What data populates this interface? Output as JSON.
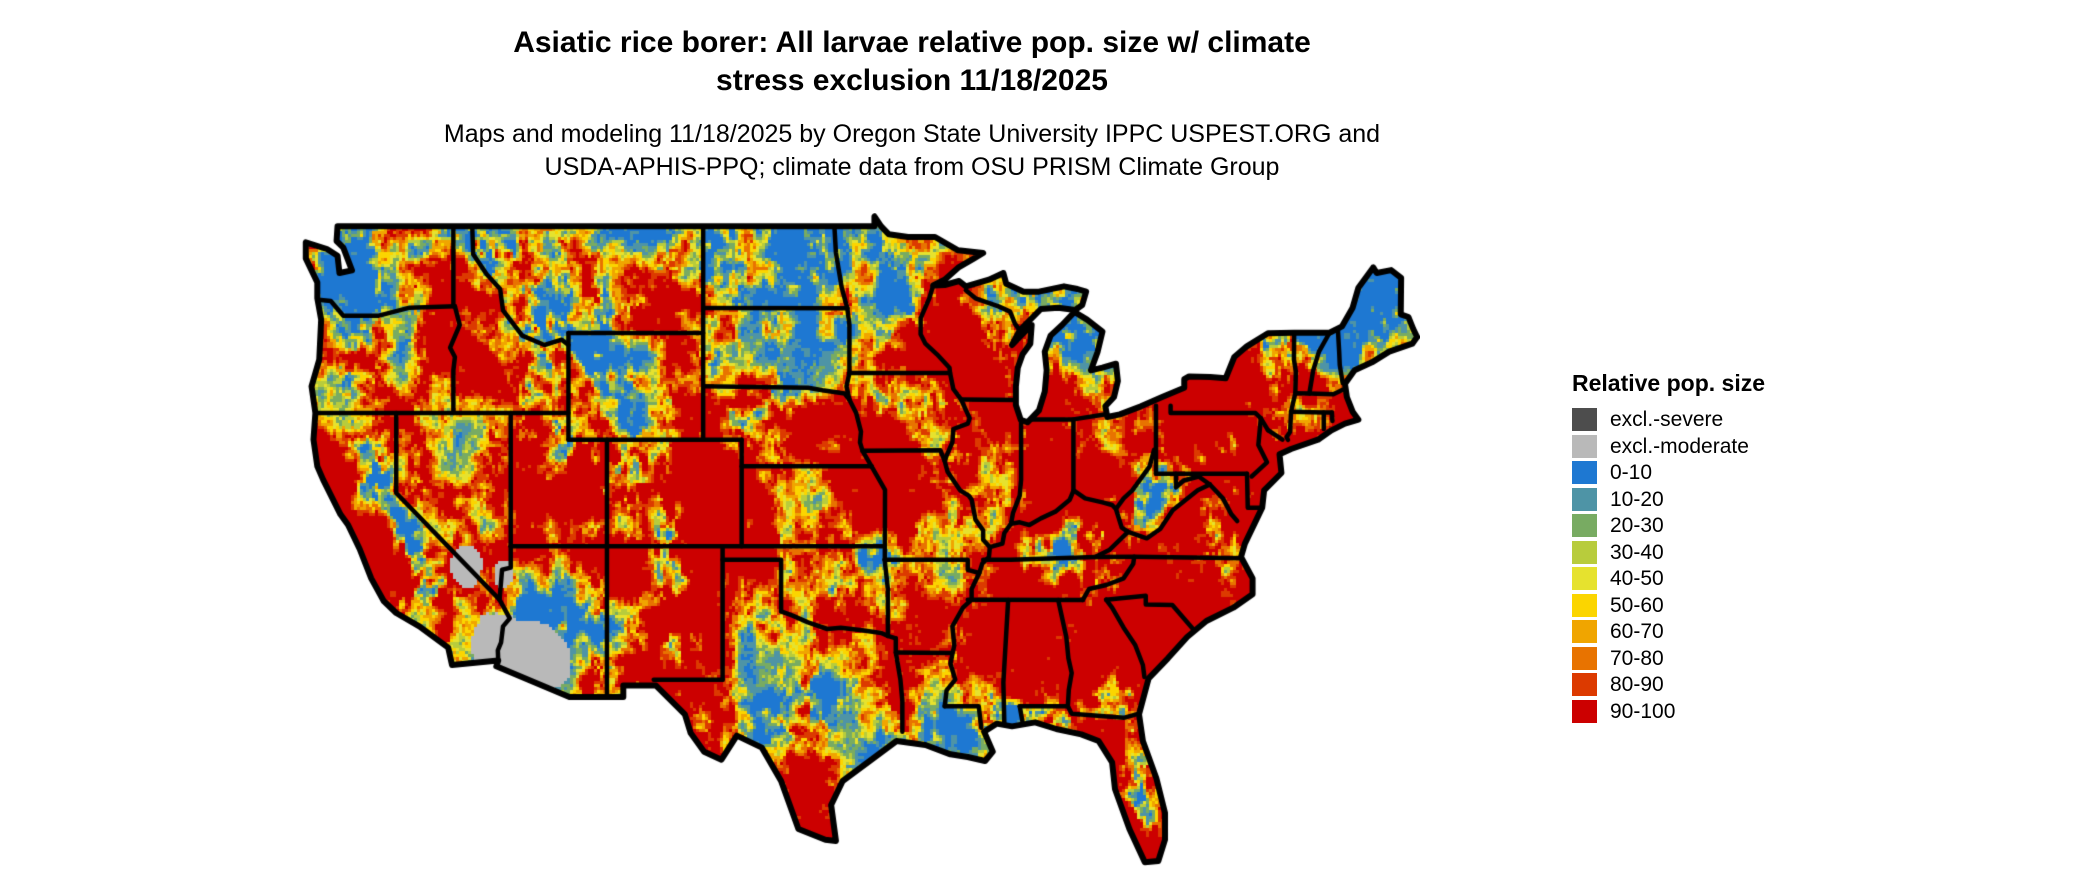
{
  "header": {
    "title_line1": "Asiatic rice borer: All larvae relative pop. size w/ climate",
    "title_line2": "stress exclusion 11/18/2025",
    "subtitle_line1": "Maps and modeling 11/18/2025 by Oregon State University IPPC USPEST.ORG and",
    "subtitle_line2": "USDA-APHIS-PPQ; climate data from OSU PRISM Climate Group"
  },
  "legend": {
    "title": "Relative pop. size",
    "items": [
      {
        "label": "excl.-severe",
        "color": "#4d4d4d"
      },
      {
        "label": "excl.-moderate",
        "color": "#b9b9b9"
      },
      {
        "label": "0-10",
        "color": "#1e78d2"
      },
      {
        "label": "10-20",
        "color": "#4e94a6"
      },
      {
        "label": "20-30",
        "color": "#78ab62"
      },
      {
        "label": "30-40",
        "color": "#b8cc3c"
      },
      {
        "label": "40-50",
        "color": "#e6e22e"
      },
      {
        "label": "50-60",
        "color": "#fbd500"
      },
      {
        "label": "60-70",
        "color": "#f0a500"
      },
      {
        "label": "70-80",
        "color": "#e87300"
      },
      {
        "label": "80-90",
        "color": "#dc3a00"
      },
      {
        "label": "90-100",
        "color": "#cc0000"
      }
    ]
  },
  "map": {
    "region": "Contiguous United States",
    "border_color": "#000000",
    "water_color": "#ffffff"
  }
}
